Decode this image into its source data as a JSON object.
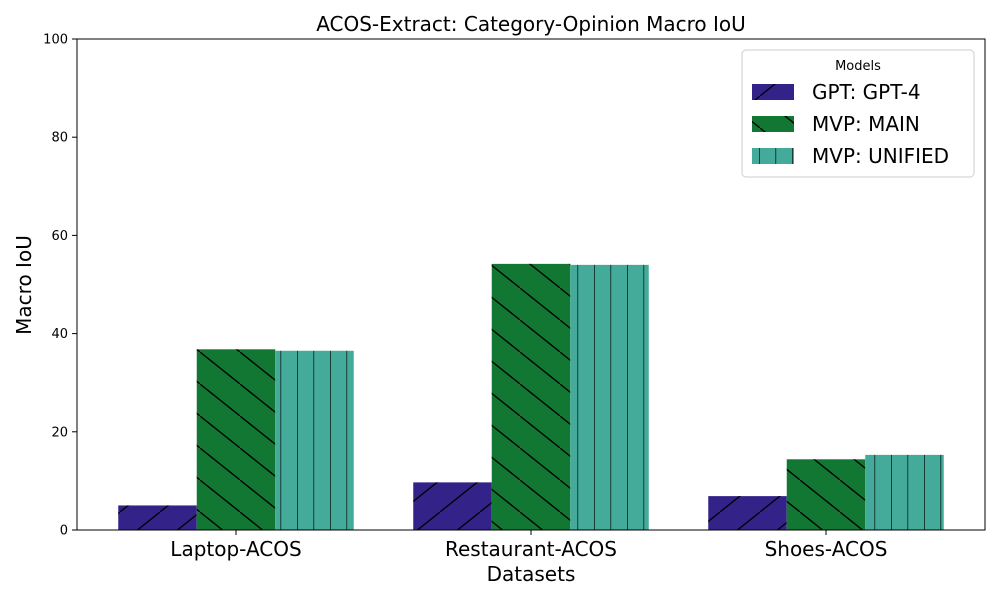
{
  "chart_data": {
    "type": "bar",
    "title": "ACOS-Extract: Category-Opinion Macro IoU",
    "xlabel": "Datasets",
    "ylabel": "Macro IoU",
    "ylim": [
      0,
      100
    ],
    "yticks": [
      0,
      20,
      40,
      60,
      80,
      100
    ],
    "categories": [
      "Laptop-ACOS",
      "Restaurant-ACOS",
      "Shoes-ACOS"
    ],
    "series": [
      {
        "name": "GPT: GPT-4",
        "values": [
          5.0,
          9.7,
          6.9
        ],
        "color": "#332288",
        "hatch": "slash"
      },
      {
        "name": "MVP: MAIN",
        "values": [
          36.8,
          54.2,
          14.4
        ],
        "color": "#117733",
        "hatch": "backslash"
      },
      {
        "name": "MVP: UNIFIED",
        "values": [
          36.5,
          54.0,
          15.3
        ],
        "color": "#44AA99",
        "hatch": "vertical"
      }
    ],
    "legend": {
      "title": "Models",
      "position": "top-right"
    },
    "grid": false
  }
}
